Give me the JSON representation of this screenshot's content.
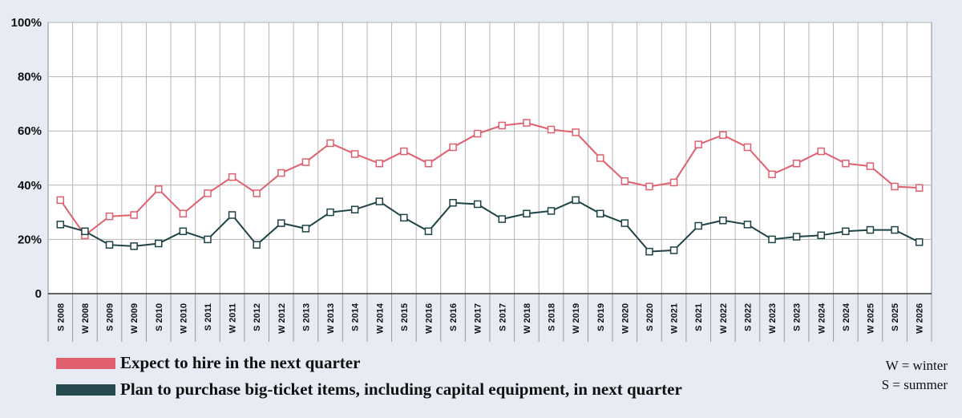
{
  "chart_data": {
    "type": "line",
    "categories": [
      "S 2008",
      "W 2008",
      "S 2009",
      "W 2009",
      "S 2010",
      "W 2010",
      "S 2011",
      "W 2011",
      "S 2012",
      "W 2012",
      "S 2013",
      "W 2013",
      "S 2014",
      "W 2014",
      "S 2015",
      "W 2016",
      "S 2016",
      "W 2017",
      "S 2017",
      "W 2018",
      "S 2018",
      "W 2019",
      "S 2019",
      "W 2020",
      "S 2020",
      "W 2021",
      "S 2021",
      "W 2022",
      "S 2022",
      "W 2023",
      "S 2023",
      "W 2024",
      "S 2024",
      "W 2025",
      "S 2025",
      "W 2026"
    ],
    "y_ticks": [
      "0",
      "20%",
      "40%",
      "60%",
      "80%",
      "100%"
    ],
    "ylim": [
      0,
      100
    ],
    "series": [
      {
        "name": "Expect to hire in the next quarter",
        "color": "#e0606f",
        "values": [
          34.5,
          21.5,
          28.5,
          29,
          38.5,
          29.5,
          37,
          43,
          37,
          44.5,
          48.5,
          55.5,
          51.5,
          48,
          52.5,
          48,
          54,
          59,
          62,
          63,
          60.5,
          59.5,
          50,
          41.5,
          39.5,
          41,
          55,
          58.5,
          54,
          44,
          48,
          52.5,
          48,
          47,
          39.5,
          39
        ]
      },
      {
        "name": "Plan to purchase big-ticket items, including capital equipment, in next quarter",
        "color": "#1e4347",
        "values": [
          25.5,
          23,
          18,
          17.5,
          18.5,
          23,
          20,
          29,
          18,
          26,
          24,
          30,
          31,
          34,
          28,
          23,
          33.5,
          33,
          27.5,
          29.5,
          30.5,
          34.5,
          29.5,
          26,
          15.5,
          16,
          25,
          27,
          25.5,
          20,
          21,
          21.5,
          23,
          23.5,
          23.5,
          19
        ]
      }
    ],
    "legend": [
      {
        "label": "Expect to hire in the next quarter",
        "color": "#e0606f"
      },
      {
        "label": "Plan to purchase big-ticket items, including capital equipment, in next quarter",
        "color": "#1e4347"
      }
    ],
    "notes": [
      "W = winter",
      "S = summer"
    ]
  }
}
